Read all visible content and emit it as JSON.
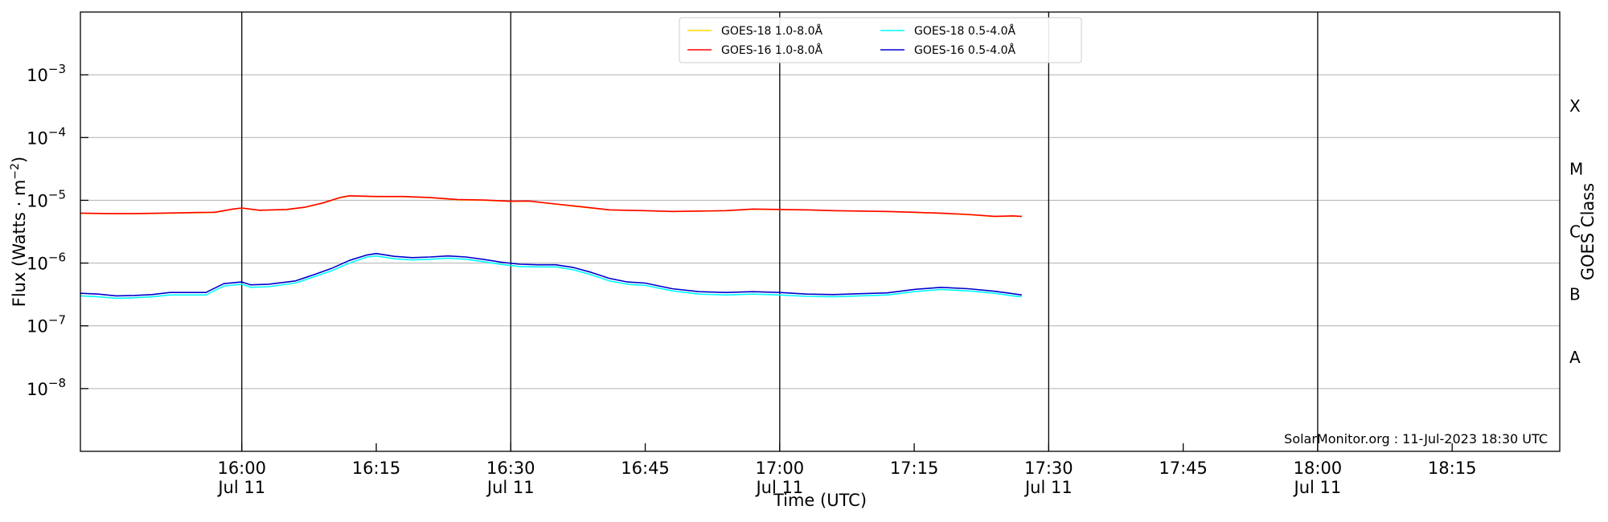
{
  "chart_data": {
    "type": "line",
    "title": "",
    "xlabel": "Time (UTC)",
    "ylabel_main": "Flux (Watts · m",
    "ylabel_sup": "−2",
    "ylabel_close": ")",
    "y2label": "GOES Class",
    "yscale": "log",
    "xlim": [
      "15:42",
      "18:27"
    ],
    "ylim": [
      1e-09,
      0.01
    ],
    "grid": "horizontal",
    "legend_position": "upper center",
    "annotation": "SolarMonitor.org : 11-Jul-2023 18:30 UTC",
    "x_ticks": [
      {
        "time": "16:00",
        "line1": "16:00",
        "line2": "Jul 11"
      },
      {
        "time": "16:15",
        "line1": "16:15",
        "line2": ""
      },
      {
        "time": "16:30",
        "line1": "16:30",
        "line2": "Jul 11"
      },
      {
        "time": "16:45",
        "line1": "16:45",
        "line2": ""
      },
      {
        "time": "17:00",
        "line1": "17:00",
        "line2": "Jul 11"
      },
      {
        "time": "17:15",
        "line1": "17:15",
        "line2": ""
      },
      {
        "time": "17:30",
        "line1": "17:30",
        "line2": "Jul 11"
      },
      {
        "time": "17:45",
        "line1": "17:45",
        "line2": ""
      },
      {
        "time": "18:00",
        "line1": "18:00",
        "line2": "Jul 11"
      },
      {
        "time": "18:15",
        "line1": "18:15",
        "line2": ""
      }
    ],
    "vertical_lines": [
      "16:00",
      "16:30",
      "17:00",
      "17:30",
      "18:00"
    ],
    "y_ticks": [
      {
        "value": 1e-08,
        "base": "10",
        "exp": "−8"
      },
      {
        "value": 1e-07,
        "base": "10",
        "exp": "−7"
      },
      {
        "value": 1e-06,
        "base": "10",
        "exp": "−6"
      },
      {
        "value": 1e-05,
        "base": "10",
        "exp": "−5"
      },
      {
        "value": 0.0001,
        "base": "10",
        "exp": "−4"
      },
      {
        "value": 0.001,
        "base": "10",
        "exp": "−3"
      }
    ],
    "goes_classes": [
      {
        "label": "A",
        "value": 3.16e-08
      },
      {
        "label": "B",
        "value": 3.16e-07
      },
      {
        "label": "C",
        "value": 3.16e-06
      },
      {
        "label": "M",
        "value": 3.16e-05
      },
      {
        "label": "X",
        "value": 0.000316
      }
    ],
    "legend": [
      {
        "label": "GOES-18 1.0-8.0",
        "unit": "Å",
        "color": "#FFD700"
      },
      {
        "label": "GOES-18 0.5-4.0",
        "unit": "Å",
        "color": "#00FFFF"
      },
      {
        "label": "GOES-16 1.0-8.0",
        "unit": "Å",
        "color": "#FF0000"
      },
      {
        "label": "GOES-16 0.5-4.0",
        "unit": "Å",
        "color": "#0000CD"
      }
    ],
    "series": [
      {
        "name": "GOES-18 1.0-8.0Å",
        "color": "#FFD700",
        "width": 1.6,
        "points": [
          [
            "15:42",
            6.2e-06
          ],
          [
            "15:45",
            6.1e-06
          ],
          [
            "15:48",
            6.1e-06
          ],
          [
            "15:51",
            6.2e-06
          ],
          [
            "15:54",
            6.3e-06
          ],
          [
            "15:57",
            6.4e-06
          ],
          [
            "15:59",
            7.2e-06
          ],
          [
            "16:00",
            7.5e-06
          ],
          [
            "16:02",
            6.9e-06
          ],
          [
            "16:05",
            7.1e-06
          ],
          [
            "16:07",
            7.7e-06
          ],
          [
            "16:09",
            9e-06
          ],
          [
            "16:11",
            1.1e-05
          ],
          [
            "16:12",
            1.17e-05
          ],
          [
            "16:15",
            1.14e-05
          ],
          [
            "16:18",
            1.14e-05
          ],
          [
            "16:21",
            1.1e-05
          ],
          [
            "16:24",
            1.02e-05
          ],
          [
            "16:27",
            1e-05
          ],
          [
            "16:30",
            9.6e-06
          ],
          [
            "16:32",
            9.7e-06
          ],
          [
            "16:35",
            8.7e-06
          ],
          [
            "16:38",
            7.8e-06
          ],
          [
            "16:41",
            7e-06
          ],
          [
            "16:45",
            6.8e-06
          ],
          [
            "16:48",
            6.6e-06
          ],
          [
            "16:51",
            6.7e-06
          ],
          [
            "16:54",
            6.8e-06
          ],
          [
            "16:57",
            7.2e-06
          ],
          [
            "17:00",
            7.1e-06
          ],
          [
            "17:03",
            7e-06
          ],
          [
            "17:06",
            6.8e-06
          ],
          [
            "17:09",
            6.7e-06
          ],
          [
            "17:12",
            6.6e-06
          ],
          [
            "17:15",
            6.4e-06
          ],
          [
            "17:18",
            6.2e-06
          ],
          [
            "17:21",
            5.9e-06
          ],
          [
            "17:24",
            5.5e-06
          ],
          [
            "17:26",
            5.6e-06
          ],
          [
            "17:27",
            5.5e-06
          ]
        ]
      },
      {
        "name": "GOES-16 1.0-8.0Å",
        "color": "#FF0000",
        "width": 1.6,
        "points": [
          [
            "15:42",
            6.25e-06
          ],
          [
            "15:45",
            6.15e-06
          ],
          [
            "15:48",
            6.15e-06
          ],
          [
            "15:51",
            6.25e-06
          ],
          [
            "15:54",
            6.35e-06
          ],
          [
            "15:57",
            6.45e-06
          ],
          [
            "15:59",
            7.25e-06
          ],
          [
            "16:00",
            7.55e-06
          ],
          [
            "16:02",
            6.95e-06
          ],
          [
            "16:05",
            7.15e-06
          ],
          [
            "16:07",
            7.75e-06
          ],
          [
            "16:09",
            9.05e-06
          ],
          [
            "16:11",
            1.11e-05
          ],
          [
            "16:12",
            1.18e-05
          ],
          [
            "16:15",
            1.15e-05
          ],
          [
            "16:18",
            1.15e-05
          ],
          [
            "16:21",
            1.11e-05
          ],
          [
            "16:24",
            1.03e-05
          ],
          [
            "16:27",
            1.01e-05
          ],
          [
            "16:30",
            9.65e-06
          ],
          [
            "16:32",
            9.75e-06
          ],
          [
            "16:35",
            8.75e-06
          ],
          [
            "16:38",
            7.85e-06
          ],
          [
            "16:41",
            7.05e-06
          ],
          [
            "16:45",
            6.85e-06
          ],
          [
            "16:48",
            6.65e-06
          ],
          [
            "16:51",
            6.75e-06
          ],
          [
            "16:54",
            6.85e-06
          ],
          [
            "16:57",
            7.25e-06
          ],
          [
            "17:00",
            7.15e-06
          ],
          [
            "17:03",
            7.05e-06
          ],
          [
            "17:06",
            6.85e-06
          ],
          [
            "17:09",
            6.75e-06
          ],
          [
            "17:12",
            6.65e-06
          ],
          [
            "17:15",
            6.45e-06
          ],
          [
            "17:18",
            6.25e-06
          ],
          [
            "17:21",
            5.95e-06
          ],
          [
            "17:24",
            5.55e-06
          ],
          [
            "17:26",
            5.65e-06
          ],
          [
            "17:27",
            5.55e-06
          ]
        ]
      },
      {
        "name": "GOES-18 0.5-4.0Å",
        "color": "#00FFFF",
        "width": 1.6,
        "points": [
          [
            "15:42",
            3e-07
          ],
          [
            "15:44",
            2.9e-07
          ],
          [
            "15:46",
            2.75e-07
          ],
          [
            "15:48",
            2.8e-07
          ],
          [
            "15:50",
            2.9e-07
          ],
          [
            "15:52",
            3.1e-07
          ],
          [
            "15:54",
            3.1e-07
          ],
          [
            "15:56",
            3.1e-07
          ],
          [
            "15:58",
            4.3e-07
          ],
          [
            "16:00",
            4.6e-07
          ],
          [
            "16:01",
            4.1e-07
          ],
          [
            "16:03",
            4.2e-07
          ],
          [
            "16:06",
            4.8e-07
          ],
          [
            "16:08",
            6e-07
          ],
          [
            "16:10",
            7.5e-07
          ],
          [
            "16:12",
            1e-06
          ],
          [
            "16:14",
            1.25e-06
          ],
          [
            "16:15",
            1.3e-06
          ],
          [
            "16:17",
            1.17e-06
          ],
          [
            "16:19",
            1.12e-06
          ],
          [
            "16:21",
            1.15e-06
          ],
          [
            "16:23",
            1.2e-06
          ],
          [
            "16:25",
            1.15e-06
          ],
          [
            "16:27",
            1.05e-06
          ],
          [
            "16:29",
            9.5e-07
          ],
          [
            "16:31",
            8.8e-07
          ],
          [
            "16:33",
            8.7e-07
          ],
          [
            "16:35",
            8.7e-07
          ],
          [
            "16:37",
            7.8e-07
          ],
          [
            "16:39",
            6.5e-07
          ],
          [
            "16:41",
            5.2e-07
          ],
          [
            "16:43",
            4.6e-07
          ],
          [
            "16:45",
            4.4e-07
          ],
          [
            "16:48",
            3.6e-07
          ],
          [
            "16:51",
            3.2e-07
          ],
          [
            "16:54",
            3.1e-07
          ],
          [
            "16:57",
            3.2e-07
          ],
          [
            "17:00",
            3.1e-07
          ],
          [
            "17:03",
            2.95e-07
          ],
          [
            "17:06",
            2.9e-07
          ],
          [
            "17:09",
            3e-07
          ],
          [
            "17:12",
            3.1e-07
          ],
          [
            "17:15",
            3.5e-07
          ],
          [
            "17:18",
            3.8e-07
          ],
          [
            "17:21",
            3.6e-07
          ],
          [
            "17:24",
            3.3e-07
          ],
          [
            "17:26",
            3e-07
          ],
          [
            "17:27",
            2.9e-07
          ]
        ]
      },
      {
        "name": "GOES-16 0.5-4.0Å",
        "color": "#0000CD",
        "width": 1.6,
        "points": [
          [
            "15:42",
            3.3e-07
          ],
          [
            "15:44",
            3.2e-07
          ],
          [
            "15:46",
            3e-07
          ],
          [
            "15:48",
            3.05e-07
          ],
          [
            "15:50",
            3.15e-07
          ],
          [
            "15:52",
            3.4e-07
          ],
          [
            "15:54",
            3.4e-07
          ],
          [
            "15:56",
            3.4e-07
          ],
          [
            "15:58",
            4.7e-07
          ],
          [
            "16:00",
            5e-07
          ],
          [
            "16:01",
            4.5e-07
          ],
          [
            "16:03",
            4.6e-07
          ],
          [
            "16:06",
            5.2e-07
          ],
          [
            "16:08",
            6.5e-07
          ],
          [
            "16:10",
            8.2e-07
          ],
          [
            "16:12",
            1.1e-06
          ],
          [
            "16:14",
            1.35e-06
          ],
          [
            "16:15",
            1.42e-06
          ],
          [
            "16:17",
            1.28e-06
          ],
          [
            "16:19",
            1.22e-06
          ],
          [
            "16:21",
            1.25e-06
          ],
          [
            "16:23",
            1.3e-06
          ],
          [
            "16:25",
            1.25e-06
          ],
          [
            "16:27",
            1.14e-06
          ],
          [
            "16:29",
            1.03e-06
          ],
          [
            "16:31",
            9.6e-07
          ],
          [
            "16:33",
            9.4e-07
          ],
          [
            "16:35",
            9.4e-07
          ],
          [
            "16:37",
            8.5e-07
          ],
          [
            "16:39",
            7.1e-07
          ],
          [
            "16:41",
            5.7e-07
          ],
          [
            "16:43",
            5e-07
          ],
          [
            "16:45",
            4.8e-07
          ],
          [
            "16:48",
            3.9e-07
          ],
          [
            "16:51",
            3.5e-07
          ],
          [
            "16:54",
            3.4e-07
          ],
          [
            "16:57",
            3.5e-07
          ],
          [
            "17:00",
            3.4e-07
          ],
          [
            "17:03",
            3.2e-07
          ],
          [
            "17:06",
            3.15e-07
          ],
          [
            "17:09",
            3.25e-07
          ],
          [
            "17:12",
            3.35e-07
          ],
          [
            "17:15",
            3.8e-07
          ],
          [
            "17:18",
            4.1e-07
          ],
          [
            "17:21",
            3.9e-07
          ],
          [
            "17:24",
            3.55e-07
          ],
          [
            "17:26",
            3.25e-07
          ],
          [
            "17:27",
            3.1e-07
          ]
        ]
      }
    ]
  }
}
